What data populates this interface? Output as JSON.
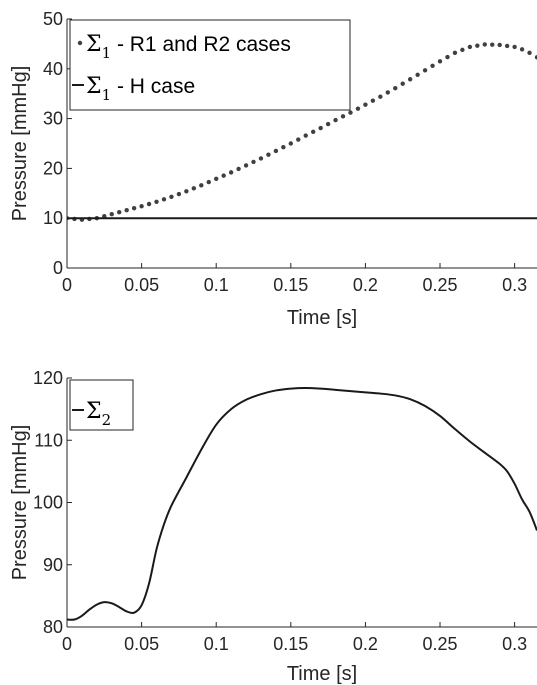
{
  "chart_data": [
    {
      "type": "line",
      "xlabel": "Time [s]",
      "ylabel": "Pressure [mmHg]",
      "xlim": [
        0,
        0.315
      ],
      "ylim": [
        0,
        50
      ],
      "xticks": [
        0,
        0.05,
        0.1,
        0.15,
        0.2,
        0.25,
        0.3
      ],
      "xtick_labels": [
        "0",
        "0.05",
        "0.1",
        "0.15",
        "0.2",
        "0.25",
        "0.3"
      ],
      "yticks": [
        0,
        10,
        20,
        30,
        40,
        50
      ],
      "ytick_labels": [
        "0",
        "10",
        "20",
        "30",
        "40",
        "50"
      ],
      "legend_placement": "top-left",
      "series": [
        {
          "name_symbol": "Σ",
          "name_sub": "1",
          "name_desc": " - R1 and R2 cases",
          "style": "dotted",
          "color": "#404040",
          "x": [
            0,
            0.01,
            0.02,
            0.03,
            0.04,
            0.05,
            0.06,
            0.07,
            0.08,
            0.09,
            0.1,
            0.11,
            0.12,
            0.13,
            0.14,
            0.15,
            0.16,
            0.17,
            0.18,
            0.19,
            0.2,
            0.21,
            0.22,
            0.23,
            0.24,
            0.25,
            0.26,
            0.27,
            0.28,
            0.29,
            0.3,
            0.305,
            0.31,
            0.315
          ],
          "y": [
            10,
            9.7,
            10,
            10.8,
            11.6,
            12.4,
            13.3,
            14.3,
            15.4,
            16.6,
            17.9,
            19.2,
            20.6,
            22,
            23.5,
            25,
            26.6,
            28.1,
            29.7,
            31.2,
            32.8,
            34.4,
            36.1,
            37.9,
            39.7,
            41.5,
            43.2,
            44.4,
            44.9,
            44.8,
            44.4,
            43.9,
            43.2,
            42.3
          ]
        },
        {
          "name_symbol": "Σ",
          "name_sub": "1",
          "name_desc": " - H case",
          "style": "solid",
          "color": "#1a1a1a",
          "x": [
            0,
            0.315
          ],
          "y": [
            10,
            10
          ]
        }
      ]
    },
    {
      "type": "line",
      "xlabel": "Time [s]",
      "ylabel": "Pressure [mmHg]",
      "xlim": [
        0,
        0.315
      ],
      "ylim": [
        80,
        120
      ],
      "xticks": [
        0,
        0.05,
        0.1,
        0.15,
        0.2,
        0.25,
        0.3
      ],
      "xtick_labels": [
        "0",
        "0.05",
        "0.1",
        "0.15",
        "0.2",
        "0.25",
        "0.3"
      ],
      "yticks": [
        80,
        90,
        100,
        110,
        120
      ],
      "ytick_labels": [
        "80",
        "90",
        "100",
        "110",
        "120"
      ],
      "legend_placement": "top-left",
      "series": [
        {
          "name_symbol": "Σ",
          "name_sub": "2",
          "name_desc": "",
          "style": "solid",
          "color": "#1a1a1a",
          "x": [
            0,
            0.005,
            0.01,
            0.015,
            0.02,
            0.025,
            0.03,
            0.035,
            0.04,
            0.045,
            0.05,
            0.055,
            0.06,
            0.065,
            0.07,
            0.08,
            0.09,
            0.1,
            0.11,
            0.12,
            0.13,
            0.14,
            0.15,
            0.16,
            0.17,
            0.18,
            0.19,
            0.2,
            0.21,
            0.22,
            0.23,
            0.24,
            0.25,
            0.26,
            0.27,
            0.28,
            0.29,
            0.295,
            0.3,
            0.305,
            0.31,
            0.315
          ],
          "y": [
            81.2,
            81.2,
            81.8,
            82.8,
            83.6,
            84,
            83.8,
            83.2,
            82.5,
            82.3,
            83.5,
            87,
            92.5,
            96.5,
            99.5,
            104,
            108.5,
            112.5,
            115,
            116.5,
            117.4,
            118,
            118.3,
            118.4,
            118.3,
            118.1,
            117.9,
            117.7,
            117.5,
            117.2,
            116.6,
            115.5,
            113.9,
            111.8,
            109.8,
            108,
            106.2,
            105,
            103,
            100.5,
            98.5,
            95.5
          ]
        }
      ]
    }
  ]
}
